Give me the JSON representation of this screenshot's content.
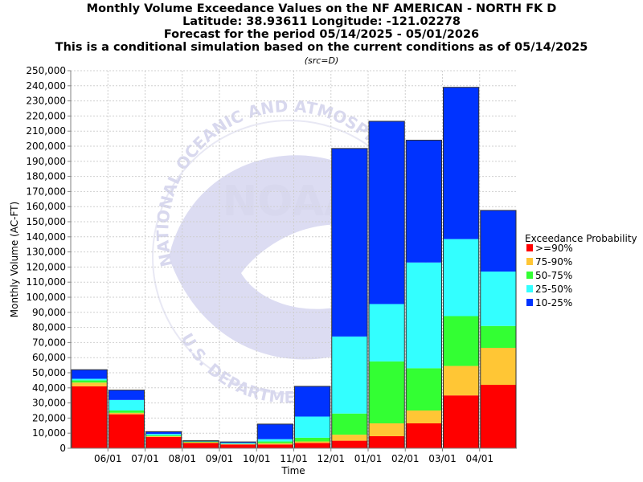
{
  "chart_data": {
    "type": "bar",
    "stacked": true,
    "title_lines": [
      "Monthly Volume Exceedance Values on the NF AMERICAN - NORTH FK D",
      "Latitude: 38.93611 Longitude: -121.02278",
      "Forecast for the period 05/14/2025 - 05/01/2026",
      "This is a conditional simulation based on the current conditions as of 05/14/2025"
    ],
    "subtitle": "(src=D)",
    "xlabel": "Time",
    "ylabel": "Monthly Volume (AC-FT)",
    "ylim": [
      0,
      250000
    ],
    "ytick_step": 10000,
    "grid": true,
    "x_tick_labels": [
      "06/01",
      "07/01",
      "08/01",
      "09/01",
      "10/01",
      "11/01",
      "12/01",
      "01/01",
      "02/01",
      "03/01",
      "04/01"
    ],
    "categories": [
      "05/2025",
      "06/2025",
      "07/2025",
      "08/2025",
      "09/2025",
      "10/2025",
      "11/2025",
      "12/2025",
      "01/2026",
      "02/2026",
      "03/2026",
      "04/2026"
    ],
    "legend": {
      "title": "Exceedance Probability",
      "placement": "right"
    },
    "series": [
      {
        "name": ">=90%",
        "color": "#ff0000",
        "values": [
          41000,
          22500,
          7500,
          3500,
          2500,
          2500,
          3500,
          5000,
          8000,
          16500,
          35000,
          42000
        ]
      },
      {
        "name": "75-90%",
        "color": "#ffc635",
        "values": [
          2500,
          1000,
          500,
          500,
          300,
          800,
          1000,
          4000,
          8500,
          8500,
          19500,
          24500
        ]
      },
      {
        "name": "50-75%",
        "color": "#33ff33",
        "values": [
          1500,
          1500,
          500,
          500,
          200,
          1200,
          2500,
          14000,
          41000,
          28000,
          33000,
          14500
        ]
      },
      {
        "name": "25-50%",
        "color": "#33ffff",
        "values": [
          1000,
          7000,
          1000,
          0,
          500,
          1500,
          14000,
          51000,
          38000,
          70000,
          51000,
          36000
        ]
      },
      {
        "name": "10-25%",
        "color": "#0033ff",
        "values": [
          6000,
          6500,
          1500,
          500,
          700,
          10000,
          20000,
          124500,
          121000,
          81000,
          100500,
          40500
        ]
      }
    ]
  },
  "watermark": {
    "logo_text": "NOAA",
    "arc_top_text": "NATIONAL OCEANIC AND ATMOSPHERIC",
    "arc_bottom_text": "U.S. DEPARTMENT"
  }
}
